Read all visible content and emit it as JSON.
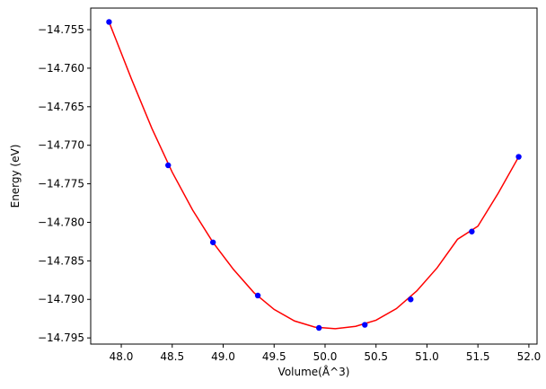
{
  "chart_data": {
    "type": "scatter",
    "xlabel": "Volume(Å^3)",
    "ylabel": "Energy (eV)",
    "xlim": [
      47.7,
      52.08
    ],
    "ylim": [
      -14.7958,
      -14.7522
    ],
    "x_ticks": [
      48.0,
      48.5,
      49.0,
      49.5,
      50.0,
      50.5,
      51.0,
      51.5,
      52.0
    ],
    "x_tick_labels": [
      "48.0",
      "48.5",
      "49.0",
      "49.5",
      "50.0",
      "50.5",
      "51.0",
      "51.5",
      "52.0"
    ],
    "y_ticks": [
      -14.755,
      -14.76,
      -14.765,
      -14.77,
      -14.775,
      -14.78,
      -14.785,
      -14.79,
      -14.795
    ],
    "y_tick_labels": [
      "−14.755",
      "−14.760",
      "−14.765",
      "−14.770",
      "−14.775",
      "−14.780",
      "−14.785",
      "−14.790",
      "−14.795"
    ],
    "grid": false,
    "series": [
      {
        "kind": "points",
        "color": "#0000ff",
        "x": [
          47.88,
          48.46,
          48.9,
          49.34,
          49.94,
          50.39,
          50.84,
          51.44,
          51.9
        ],
        "y": [
          -14.754,
          -14.7726,
          -14.7826,
          -14.7895,
          -14.7937,
          -14.7933,
          -14.79,
          -14.7812,
          -14.7715
        ]
      },
      {
        "kind": "fit-line",
        "color": "#ff0000",
        "x": [
          47.88,
          48.1,
          48.3,
          48.5,
          48.7,
          48.9,
          49.1,
          49.3,
          49.5,
          49.7,
          49.9,
          50.1,
          50.3,
          50.5,
          50.7,
          50.9,
          51.1,
          51.3,
          51.5,
          51.7,
          51.9
        ],
        "y": [
          -14.754,
          -14.7614,
          -14.7678,
          -14.7735,
          -14.7784,
          -14.7826,
          -14.7861,
          -14.7891,
          -14.7913,
          -14.7928,
          -14.7936,
          -14.7938,
          -14.7935,
          -14.7927,
          -14.7912,
          -14.7889,
          -14.7859,
          -14.7822,
          -14.7805,
          -14.7762,
          -14.7715
        ]
      }
    ]
  }
}
